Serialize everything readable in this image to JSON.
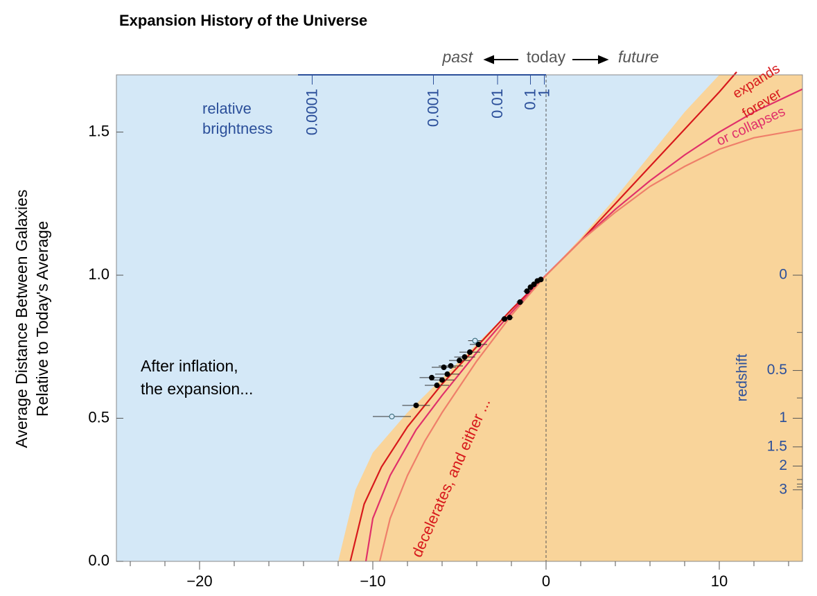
{
  "chart_data": {
    "type": "line",
    "title": "Expansion History of the Universe",
    "ylabel": [
      "Average Distance Between Galaxies",
      "Relative to Today's Average"
    ],
    "xlim": [
      -24.8,
      14.8
    ],
    "ylim": [
      0,
      1.7
    ],
    "xticks": [
      {
        "value": -20,
        "label": "−20"
      },
      {
        "value": -10,
        "label": "−10"
      },
      0,
      10
    ],
    "xminor": [
      -24,
      -22,
      -18,
      -16,
      -14,
      -12,
      -8,
      -6,
      -4,
      -2,
      2,
      4,
      6,
      8,
      12,
      14
    ],
    "yticks": [
      {
        "value": 0,
        "label": "0.0"
      },
      0.5,
      {
        "value": 1,
        "label": "1.0"
      },
      1.5
    ],
    "brightness_label": [
      "relative",
      "brightness"
    ],
    "brightness_ticks": [
      {
        "value": -13.5,
        "label": "0.0001"
      },
      {
        "value": -6.5,
        "label": "0.001"
      },
      {
        "value": -2.8,
        "label": "0.01"
      },
      {
        "value": -0.9,
        "label": "0.1"
      },
      {
        "value": -0.1,
        "label": "1"
      }
    ],
    "redshift_label": "redshift",
    "redshift_ticks": [
      {
        "value": 1,
        "label": "0"
      },
      {
        "value": 0.667,
        "label": "0.5"
      },
      {
        "value": 0.5,
        "label": "1"
      },
      {
        "value": 0.4,
        "label": "1.5"
      },
      {
        "value": 0.333,
        "label": "2"
      },
      {
        "value": 0.25,
        "label": "3"
      }
    ],
    "redshift_minor": [
      0.8,
      0.571,
      0.286,
      0.27,
      0.26
    ],
    "time_labels": {
      "past": "past",
      "today": "today",
      "future": "future"
    },
    "annotations": {
      "inflation": [
        "After inflation,",
        "the expansion..."
      ],
      "decelerates": "decelerates, and either ...",
      "expands": "expands",
      "forever": "forever",
      "collapses": "or collapses"
    },
    "region": {
      "color": "#f9d49a",
      "x": [
        -12,
        -11,
        -10,
        -8,
        -6,
        -4,
        -2,
        0,
        2,
        4,
        6,
        8,
        10
      ],
      "values": [
        0,
        0.25,
        0.38,
        0.52,
        0.64,
        0.76,
        0.88,
        1.0,
        1.13,
        1.27,
        1.42,
        1.57,
        1.7
      ]
    },
    "series": [
      {
        "color": "#d7191c",
        "x": [
          -11.3,
          -10.5,
          -9.5,
          -8,
          -6,
          -4,
          -2,
          0,
          2,
          4,
          6,
          8,
          10,
          11
        ],
        "values": [
          0,
          0.2,
          0.33,
          0.47,
          0.62,
          0.75,
          0.88,
          1.0,
          1.12,
          1.25,
          1.38,
          1.51,
          1.64,
          1.71
        ]
      },
      {
        "color": "#e0306a",
        "x": [
          -10.4,
          -10,
          -9,
          -7.5,
          -6,
          -4,
          -2,
          0,
          2,
          4,
          6,
          8,
          10,
          12,
          14.8
        ],
        "values": [
          0,
          0.15,
          0.3,
          0.46,
          0.58,
          0.73,
          0.87,
          1.0,
          1.12,
          1.23,
          1.33,
          1.42,
          1.5,
          1.57,
          1.65
        ]
      },
      {
        "color": "#ef7f6a",
        "x": [
          -9.6,
          -9,
          -8,
          -7,
          -6,
          -4,
          -2,
          0,
          2,
          4,
          6,
          8,
          10,
          12,
          14.8
        ],
        "values": [
          0,
          0.15,
          0.3,
          0.42,
          0.52,
          0.7,
          0.86,
          1.0,
          1.12,
          1.22,
          1.31,
          1.38,
          1.44,
          1.48,
          1.51
        ]
      }
    ],
    "points": [
      {
        "filled": true,
        "x": [
          -0.3,
          -0.5,
          -0.7,
          -0.9,
          -1.1,
          -1.5,
          -2.1,
          -2.4,
          -3.9,
          -4.4,
          -4.7,
          -5.0,
          -5.5,
          -5.9,
          -5.7,
          -6.0,
          -6.3,
          -6.6,
          -7.5
        ],
        "values": [
          0.985,
          0.98,
          0.968,
          0.958,
          0.944,
          0.906,
          0.852,
          0.847,
          0.758,
          0.731,
          0.714,
          0.702,
          0.683,
          0.678,
          0.654,
          0.634,
          0.615,
          0.642,
          0.545
        ],
        "xerr": [
          0.1,
          0.1,
          0.1,
          0.1,
          0.2,
          0.2,
          0.2,
          0.2,
          0.5,
          0.6,
          0.6,
          0.6,
          0.7,
          0.7,
          0.7,
          0.7,
          0.7,
          0.7,
          0.8
        ]
      },
      {
        "filled": false,
        "x": [
          -8.9,
          -4.1
        ],
        "values": [
          0.506,
          0.771
        ],
        "xerr": [
          1.1,
          0.4
        ]
      }
    ]
  }
}
